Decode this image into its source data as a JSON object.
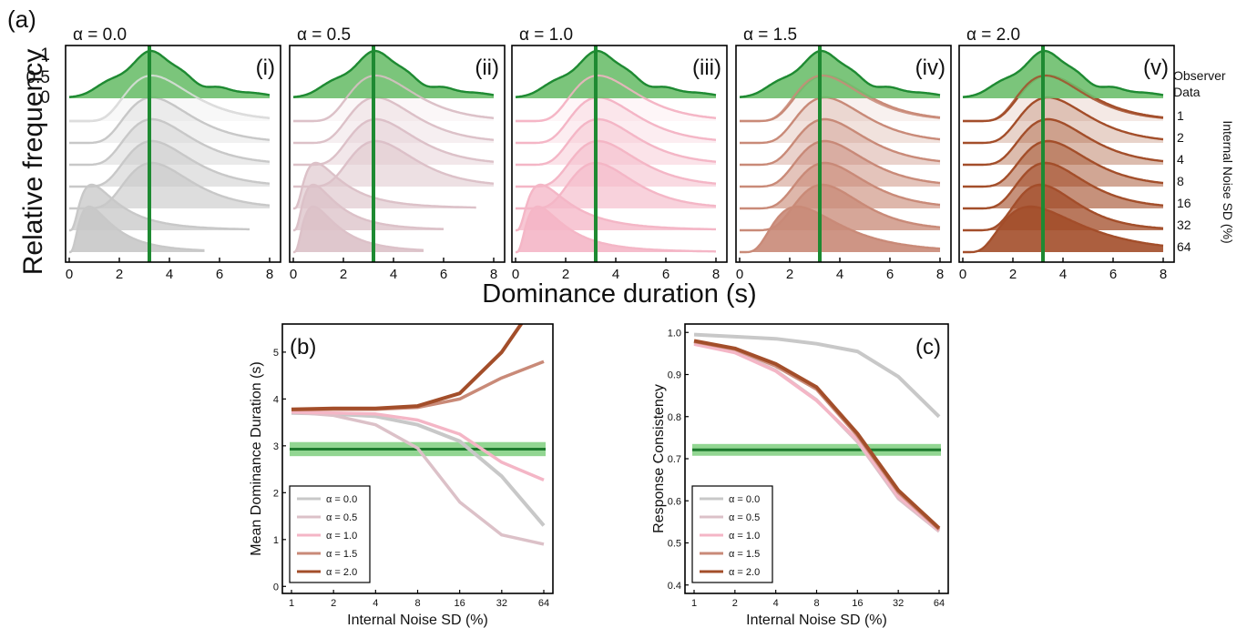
{
  "figure": {
    "panel_a_label": "(a)",
    "ylabel": "Relative frequency",
    "xlabel": "Dominance duration (s)",
    "yticks": [
      "1",
      "0.5",
      "0"
    ],
    "xticks": [
      "0",
      "2",
      "4",
      "6",
      "8"
    ],
    "observer_label_1": "Observer",
    "observer_label_2": "Data",
    "noise_axis_label": "Internal Noise SD (%)",
    "noise_levels": [
      "1",
      "2",
      "4",
      "8",
      "16",
      "32",
      "64"
    ]
  },
  "colors": {
    "observer_fill": "#6dbf6d",
    "observer_line": "#1e8a32",
    "alpha_0.0": "#c8c8c8",
    "alpha_0.5": "#dcc1c8",
    "alpha_1.0": "#f4b6c6",
    "alpha_1.5": "#c98a78",
    "alpha_2.0": "#a34e2a",
    "green_band": "#7fcf7f",
    "green_line": "#1d7a2d"
  },
  "chart_data": [
    {
      "type": "area",
      "panel": "(i)",
      "title": "α = 0.0",
      "observer_peak_s": 3.2,
      "series_peaks_s": [
        3.3,
        3.3,
        3.3,
        3.3,
        3.3,
        0.9,
        0.8
      ],
      "series_tail_end_s": [
        8,
        8,
        8,
        8,
        8,
        7.2,
        5.4
      ]
    },
    {
      "type": "area",
      "panel": "(ii)",
      "title": "α = 0.5",
      "observer_peak_s": 3.2,
      "series_peaks_s": [
        3.3,
        3.3,
        3.3,
        3.3,
        0.9,
        0.8,
        0.8
      ],
      "series_tail_end_s": [
        8,
        8,
        8,
        8,
        7.3,
        6,
        5.2
      ]
    },
    {
      "type": "area",
      "panel": "(iii)",
      "title": "α = 1.0",
      "observer_peak_s": 3.2,
      "series_peaks_s": [
        3.3,
        3.3,
        3.3,
        3.3,
        3.2,
        1.0,
        0.9
      ],
      "series_tail_end_s": [
        8,
        8,
        8,
        8,
        8,
        8,
        8
      ]
    },
    {
      "type": "area",
      "panel": "(iv)",
      "title": "α = 1.5",
      "observer_peak_s": 3.2,
      "series_peaks_s": [
        3.4,
        3.4,
        3.4,
        3.4,
        3.4,
        3.3,
        2.3
      ],
      "series_tail_end_s": [
        8,
        8,
        8,
        8,
        8,
        8,
        8
      ]
    },
    {
      "type": "area",
      "panel": "(v)",
      "title": "α = 2.0",
      "observer_peak_s": 3.2,
      "series_peaks_s": [
        3.4,
        3.4,
        3.4,
        3.4,
        3.3,
        3.1,
        2.7
      ],
      "series_tail_end_s": [
        8,
        8,
        8,
        8,
        8,
        8,
        8
      ]
    },
    {
      "type": "line",
      "panel": "(b)",
      "ylabel": "Mean Dominance Duration (s)",
      "xlabel": "Internal Noise SD (%)",
      "categories": [
        "1",
        "2",
        "4",
        "8",
        "16",
        "32",
        "64"
      ],
      "yticks": [
        "0",
        "1",
        "2",
        "3",
        "4",
        "5"
      ],
      "ylim": [
        -0.15,
        5.6
      ],
      "observer": {
        "value": 2.93,
        "band": [
          2.78,
          3.08
        ]
      },
      "series": [
        {
          "name": "α = 0.0",
          "values": [
            3.7,
            3.68,
            3.63,
            3.45,
            3.1,
            2.35,
            1.3
          ]
        },
        {
          "name": "α = 0.5",
          "values": [
            3.72,
            3.65,
            3.45,
            2.95,
            1.8,
            1.1,
            0.9
          ]
        },
        {
          "name": "α = 1.0",
          "values": [
            3.72,
            3.7,
            3.68,
            3.55,
            3.25,
            2.65,
            2.27
          ]
        },
        {
          "name": "α = 1.5",
          "values": [
            3.77,
            3.78,
            3.78,
            3.82,
            4.0,
            4.45,
            4.8
          ]
        },
        {
          "name": "α = 2.0",
          "values": [
            3.78,
            3.8,
            3.8,
            3.85,
            4.12,
            5.0,
            6.3
          ]
        }
      ]
    },
    {
      "type": "line",
      "panel": "(c)",
      "ylabel": "Response Consistency",
      "xlabel": "Internal Noise SD (%)",
      "categories": [
        "1",
        "2",
        "4",
        "8",
        "16",
        "32",
        "64"
      ],
      "yticks": [
        "0.4",
        "0.5",
        "0.6",
        "0.7",
        "0.8",
        "0.9",
        "1.0"
      ],
      "ylim": [
        0.38,
        1.02
      ],
      "observer": {
        "value": 0.721,
        "band": [
          0.707,
          0.735
        ]
      },
      "series": [
        {
          "name": "α = 0.0",
          "values": [
            0.995,
            0.99,
            0.985,
            0.973,
            0.955,
            0.895,
            0.8
          ]
        },
        {
          "name": "α = 0.5",
          "values": [
            0.975,
            0.955,
            0.91,
            0.84,
            0.74,
            0.605,
            0.527
          ]
        },
        {
          "name": "α = 1.0",
          "values": [
            0.972,
            0.952,
            0.908,
            0.838,
            0.745,
            0.61,
            0.53
          ]
        },
        {
          "name": "α = 1.5",
          "values": [
            0.978,
            0.96,
            0.92,
            0.865,
            0.755,
            0.62,
            0.532
          ]
        },
        {
          "name": "α = 2.0",
          "values": [
            0.98,
            0.962,
            0.925,
            0.87,
            0.76,
            0.625,
            0.535
          ]
        }
      ]
    }
  ]
}
